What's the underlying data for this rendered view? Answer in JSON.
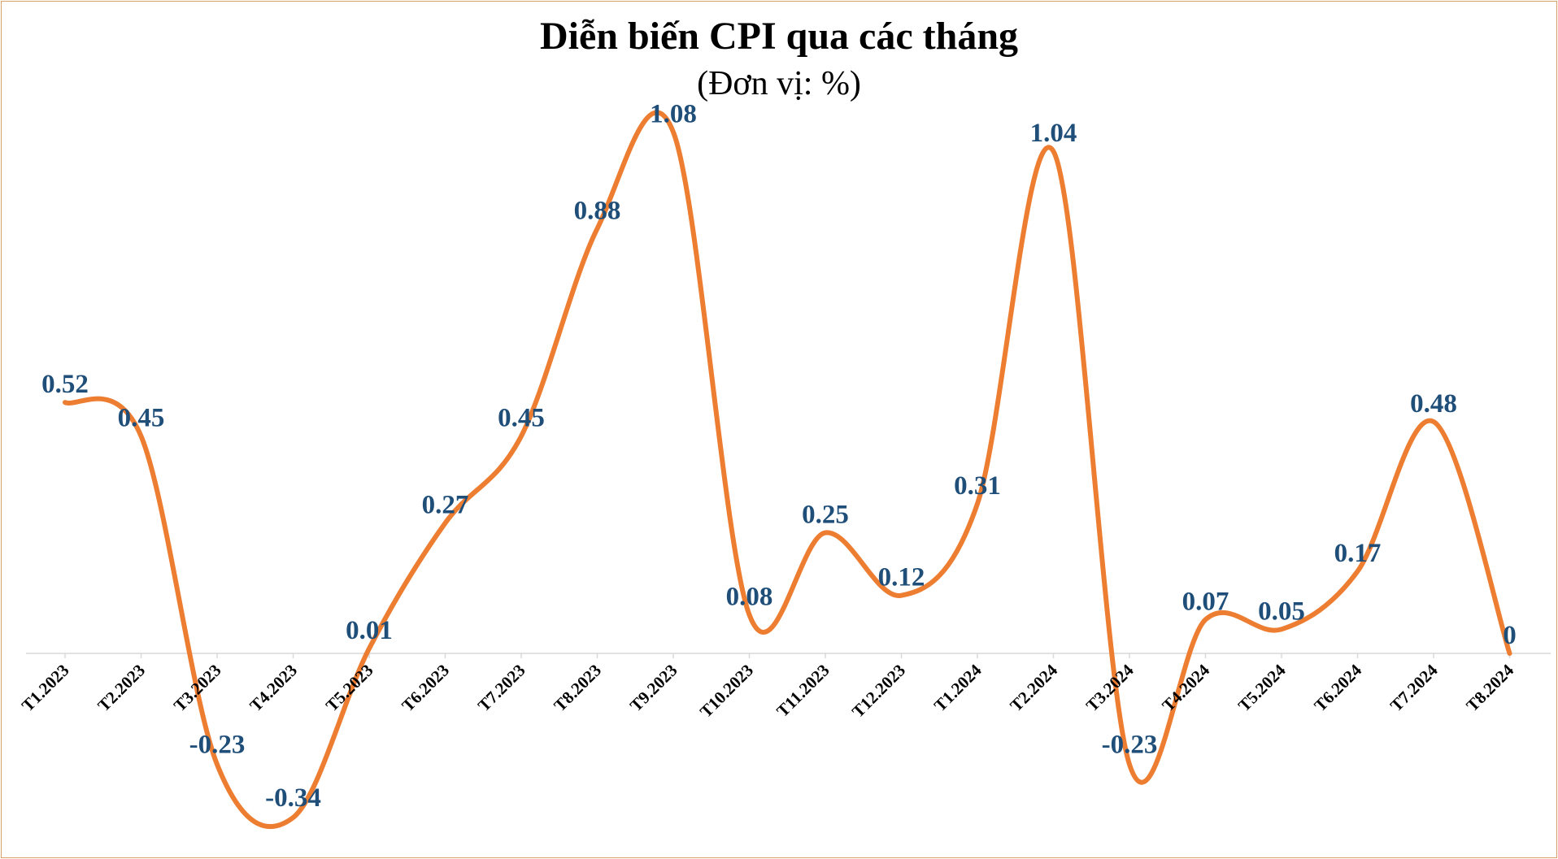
{
  "chart_data": {
    "type": "line",
    "title": "Diễn biến CPI qua các tháng",
    "subtitle": "(Đơn vị: %)",
    "categories": [
      "T1.2023",
      "T2.2023",
      "T3.2023",
      "T4.2023",
      "T5.2023",
      "T6.2023",
      "T7.2023",
      "T8.2023",
      "T9.2023",
      "T10.2023",
      "T11.2023",
      "T12.2023",
      "T1.2024",
      "T2.2024",
      "T3.2024",
      "T4.2024",
      "T5.2024",
      "T6.2024",
      "T7.2024",
      "T8.2024"
    ],
    "values": [
      0.52,
      0.45,
      -0.23,
      -0.34,
      0.01,
      0.27,
      0.45,
      0.88,
      1.08,
      0.08,
      0.25,
      0.12,
      0.31,
      1.04,
      -0.23,
      0.07,
      0.05,
      0.17,
      0.48,
      0
    ],
    "value_labels": [
      "0.52",
      "0.45",
      "-0.23",
      "-0.34",
      "0.01",
      "0.27",
      "0.45",
      "0.88",
      "1.08",
      "0.08",
      "0.25",
      "0.12",
      "0.31",
      "1.04",
      "-0.23",
      "0.07",
      "0.05",
      "0.17",
      "0.48",
      "0"
    ],
    "xlabel": "",
    "ylabel": "",
    "smooth": true,
    "grid": false,
    "legend": "none",
    "colors": {
      "line": "#ed7d31",
      "labels": "#1f4e79",
      "axis": "#d9d9d9",
      "border": "#d9a066"
    }
  }
}
